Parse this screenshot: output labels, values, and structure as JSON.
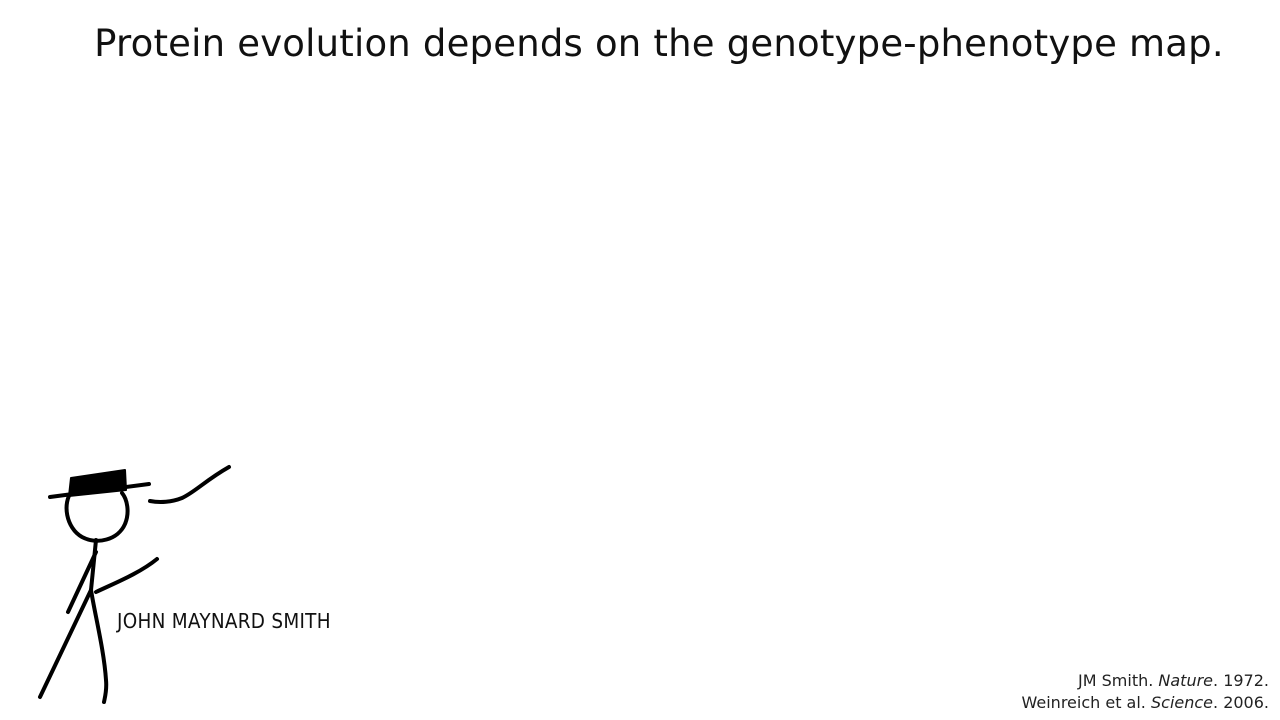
{
  "slide": {
    "title": "Protein evolution depends on the genotype-phenotype map.",
    "figure": {
      "icon": "stick-figure-with-hat-icon",
      "caption": "JOHN MAYNARD SMITH"
    },
    "references": [
      {
        "author": "JM Smith. ",
        "journal": "Nature",
        "year": ". 1972."
      },
      {
        "author": "Weinreich et al. ",
        "journal": "Science",
        "year": ". 2006."
      }
    ]
  }
}
